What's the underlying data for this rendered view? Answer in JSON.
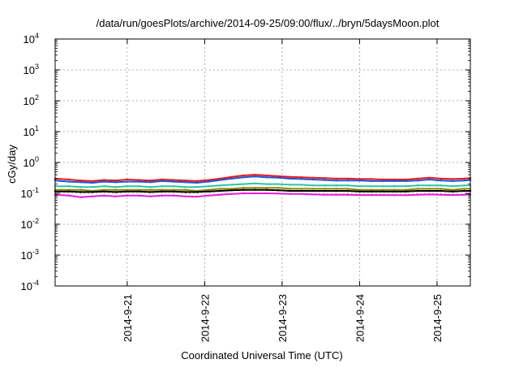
{
  "chart_data": {
    "type": "line",
    "title": "/data/run/goesPlots/archive/2014-09-25/09:00/flux/../bryn/5daysMoon.plot",
    "xlabel": "Coordinated Universal Time (UTC)",
    "ylabel": "cGy/day",
    "yscale": "log",
    "ylim": [
      0.0001,
      10000
    ],
    "xlim": [
      -0.93,
      4.43
    ],
    "grid": true,
    "y_ticks": [
      {
        "exp": -4,
        "base": "10",
        "sup": "-4"
      },
      {
        "exp": -3,
        "base": "10",
        "sup": "-3"
      },
      {
        "exp": -2,
        "base": "10",
        "sup": "-2"
      },
      {
        "exp": -1,
        "base": "10",
        "sup": "-1"
      },
      {
        "exp": 0,
        "base": "10",
        "sup": "0"
      },
      {
        "exp": 1,
        "base": "10",
        "sup": "1"
      },
      {
        "exp": 2,
        "base": "10",
        "sup": "2"
      },
      {
        "exp": 3,
        "base": "10",
        "sup": "3"
      },
      {
        "exp": 4,
        "base": "10",
        "sup": "4"
      }
    ],
    "x_ticks": [
      {
        "value": 0,
        "label": "2014-9-21"
      },
      {
        "value": 1,
        "label": "2014-9-22"
      },
      {
        "value": 2,
        "label": "2014-9-23"
      },
      {
        "value": 3,
        "label": "2014-9-24"
      },
      {
        "value": 4,
        "label": "2014-9-25"
      }
    ],
    "x": [
      -0.93,
      -0.75,
      -0.6,
      -0.45,
      -0.3,
      -0.15,
      0.0,
      0.15,
      0.3,
      0.45,
      0.6,
      0.75,
      0.9,
      1.05,
      1.2,
      1.35,
      1.5,
      1.65,
      1.8,
      1.95,
      2.1,
      2.25,
      2.4,
      2.55,
      2.7,
      2.85,
      3.0,
      3.15,
      3.3,
      3.45,
      3.6,
      3.75,
      3.9,
      4.05,
      4.2,
      4.35,
      4.43
    ],
    "series": [
      {
        "color": "#e8171a",
        "values": [
          0.3,
          0.28,
          0.26,
          0.25,
          0.27,
          0.26,
          0.28,
          0.27,
          0.26,
          0.28,
          0.27,
          0.26,
          0.25,
          0.27,
          0.3,
          0.34,
          0.38,
          0.4,
          0.38,
          0.36,
          0.34,
          0.33,
          0.32,
          0.31,
          0.3,
          0.3,
          0.29,
          0.29,
          0.28,
          0.28,
          0.28,
          0.3,
          0.32,
          0.3,
          0.29,
          0.3,
          0.31
        ]
      },
      {
        "color": "#1e56d9",
        "values": [
          0.26,
          0.24,
          0.23,
          0.22,
          0.24,
          0.23,
          0.24,
          0.24,
          0.23,
          0.25,
          0.24,
          0.23,
          0.22,
          0.24,
          0.27,
          0.3,
          0.33,
          0.35,
          0.33,
          0.32,
          0.3,
          0.29,
          0.28,
          0.27,
          0.26,
          0.26,
          0.26,
          0.25,
          0.25,
          0.25,
          0.25,
          0.26,
          0.28,
          0.26,
          0.25,
          0.26,
          0.27
        ]
      },
      {
        "color": "#2fc4a8",
        "values": [
          0.17,
          0.17,
          0.16,
          0.16,
          0.17,
          0.16,
          0.17,
          0.17,
          0.16,
          0.17,
          0.17,
          0.16,
          0.16,
          0.17,
          0.18,
          0.19,
          0.2,
          0.21,
          0.2,
          0.2,
          0.19,
          0.19,
          0.18,
          0.18,
          0.18,
          0.18,
          0.17,
          0.17,
          0.17,
          0.17,
          0.17,
          0.18,
          0.18,
          0.18,
          0.17,
          0.18,
          0.18
        ]
      },
      {
        "color": "#8a8a00",
        "values": [
          0.13,
          0.13,
          0.13,
          0.12,
          0.13,
          0.13,
          0.13,
          0.13,
          0.13,
          0.13,
          0.13,
          0.13,
          0.12,
          0.13,
          0.14,
          0.14,
          0.15,
          0.15,
          0.15,
          0.15,
          0.14,
          0.14,
          0.14,
          0.14,
          0.14,
          0.14,
          0.13,
          0.13,
          0.13,
          0.13,
          0.13,
          0.14,
          0.14,
          0.14,
          0.13,
          0.14,
          0.14
        ]
      },
      {
        "color": "#000000",
        "values": [
          0.115,
          0.115,
          0.11,
          0.11,
          0.115,
          0.11,
          0.115,
          0.115,
          0.11,
          0.115,
          0.115,
          0.11,
          0.11,
          0.115,
          0.12,
          0.125,
          0.13,
          0.13,
          0.13,
          0.125,
          0.12,
          0.12,
          0.12,
          0.12,
          0.12,
          0.12,
          0.115,
          0.115,
          0.115,
          0.115,
          0.115,
          0.12,
          0.12,
          0.12,
          0.115,
          0.12,
          0.12
        ]
      },
      {
        "color": "#e81ed6",
        "values": [
          0.09,
          0.085,
          0.075,
          0.08,
          0.085,
          0.08,
          0.085,
          0.085,
          0.08,
          0.085,
          0.085,
          0.08,
          0.078,
          0.085,
          0.09,
          0.095,
          0.1,
          0.1,
          0.1,
          0.098,
          0.095,
          0.095,
          0.092,
          0.09,
          0.09,
          0.09,
          0.088,
          0.088,
          0.088,
          0.087,
          0.087,
          0.09,
          0.092,
          0.09,
          0.088,
          0.09,
          0.092
        ]
      }
    ]
  }
}
